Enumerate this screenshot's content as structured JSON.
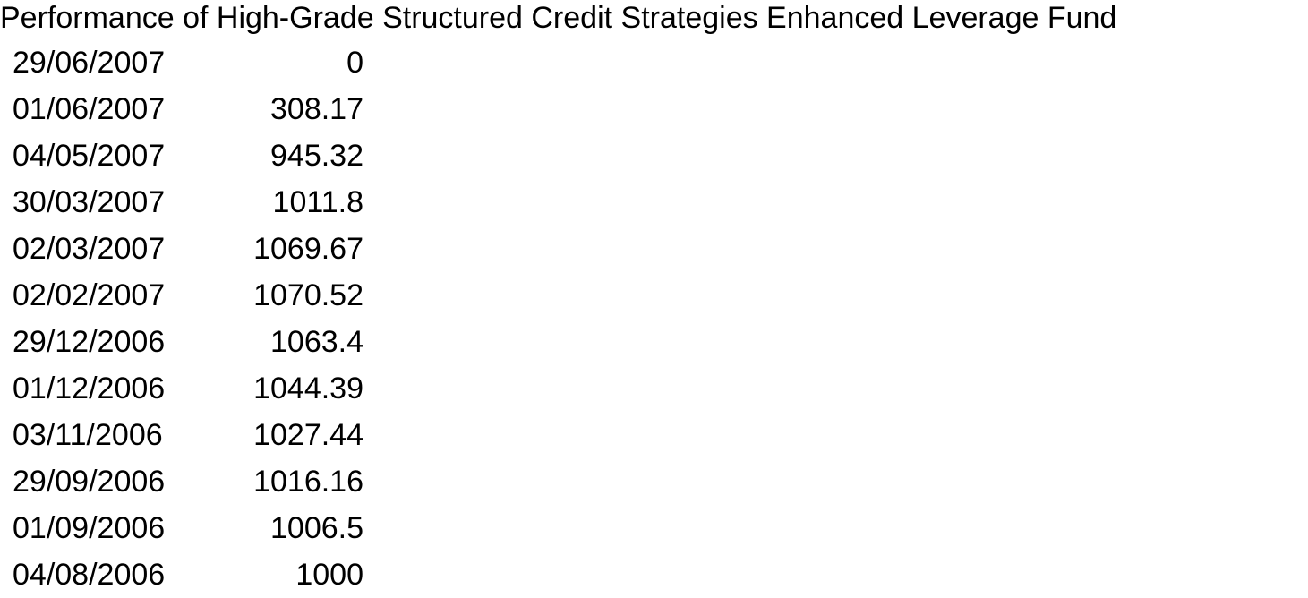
{
  "chart_data": {
    "type": "table",
    "title": "Performance of High-Grade Structured Credit Strategies Enhanced Leverage Fund",
    "rows": [
      {
        "date": "29/06/2007",
        "value": "0"
      },
      {
        "date": "01/06/2007",
        "value": "308.17"
      },
      {
        "date": "04/05/2007",
        "value": "945.32"
      },
      {
        "date": "30/03/2007",
        "value": "1011.8"
      },
      {
        "date": "02/03/2007",
        "value": "1069.67"
      },
      {
        "date": "02/02/2007",
        "value": "1070.52"
      },
      {
        "date": "29/12/2006",
        "value": "1063.4"
      },
      {
        "date": "01/12/2006",
        "value": "1044.39"
      },
      {
        "date": "03/11/2006",
        "value": "1027.44"
      },
      {
        "date": "29/09/2006",
        "value": "1016.16"
      },
      {
        "date": "01/09/2006",
        "value": "1006.5"
      },
      {
        "date": "04/08/2006",
        "value": "1000"
      }
    ]
  }
}
